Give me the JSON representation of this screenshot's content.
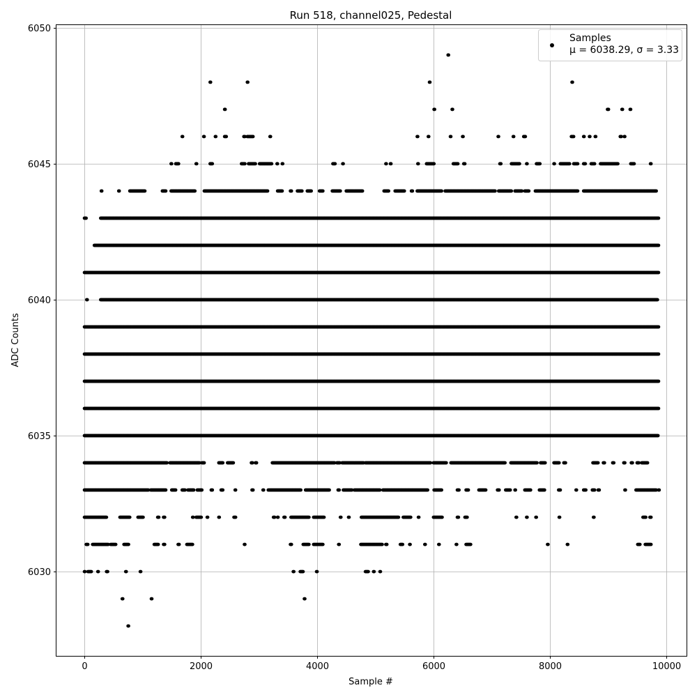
{
  "chart_data": {
    "type": "scatter",
    "title": "Run 518, channel025, Pedestal",
    "xlabel": "Sample #",
    "ylabel": "ADC Counts",
    "xlim": [
      -480,
      10350
    ],
    "ylim": [
      6026.9,
      6050.1
    ],
    "xticks": [
      0,
      2000,
      4000,
      6000,
      8000,
      10000
    ],
    "yticks": [
      6030,
      6035,
      6040,
      6045,
      6050
    ],
    "grid": true,
    "legend": {
      "placement": "top-right",
      "entries": [
        {
          "name": "Samples",
          "stats": "μ = 6038.29, σ = 3.33"
        }
      ]
    },
    "series": [
      {
        "name": "Samples",
        "color": "#000000",
        "marker": "circle",
        "n_samples": 10000,
        "level_spans": [
          {
            "y": 6028,
            "spans": [
              [
                750,
                760
              ]
            ]
          },
          {
            "y": 6029,
            "spans": [
              [
                650,
                660
              ],
              [
                1150,
                1160
              ],
              [
                3780,
                3790
              ]
            ]
          },
          {
            "y": 6030,
            "spans": [
              [
                0,
                10
              ],
              [
                60,
                120
              ],
              [
                230,
                240
              ],
              [
                380,
                400
              ],
              [
                710,
                720
              ],
              [
                960,
                970
              ],
              [
                3590,
                3600
              ],
              [
                3710,
                3760
              ],
              [
                3990,
                4000
              ],
              [
                4830,
                4880
              ],
              [
                4970,
                4980
              ],
              [
                5080,
                5090
              ]
            ]
          },
          {
            "y": 6031,
            "spans": [
              [
                30,
                60
              ],
              [
                140,
                410
              ],
              [
                450,
                540
              ],
              [
                680,
                760
              ],
              [
                1200,
                1270
              ],
              [
                1360,
                1380
              ],
              [
                1610,
                1630
              ],
              [
                1760,
                1860
              ],
              [
                2750,
                2760
              ],
              [
                3540,
                3560
              ],
              [
                3760,
                3860
              ],
              [
                3940,
                4100
              ],
              [
                4370,
                4380
              ],
              [
                4750,
                5120
              ],
              [
                5180,
                5200
              ],
              [
                5430,
                5470
              ],
              [
                5590,
                5600
              ],
              [
                5850,
                5860
              ],
              [
                6090,
                6100
              ],
              [
                6390,
                6400
              ],
              [
                6560,
                6640
              ],
              [
                7960,
                7970
              ],
              [
                8300,
                8310
              ],
              [
                9510,
                9550
              ],
              [
                9640,
                9740
              ]
            ]
          },
          {
            "y": 6032,
            "spans": [
              [
                0,
                380
              ],
              [
                610,
                780
              ],
              [
                920,
                1010
              ],
              [
                1260,
                1280
              ],
              [
                1360,
                1380
              ],
              [
                1860,
                1870
              ],
              [
                1920,
                2010
              ],
              [
                2110,
                2120
              ],
              [
                2310,
                2320
              ],
              [
                2570,
                2600
              ],
              [
                3250,
                3270
              ],
              [
                3320,
                3330
              ],
              [
                3430,
                3450
              ],
              [
                3550,
                3860
              ],
              [
                3940,
                4120
              ],
              [
                4400,
                4410
              ],
              [
                4540,
                4550
              ],
              [
                4760,
                5400
              ],
              [
                5480,
                5610
              ],
              [
                5740,
                5750
              ],
              [
                6000,
                6150
              ],
              [
                6410,
                6430
              ],
              [
                6540,
                6580
              ],
              [
                7420,
                7430
              ],
              [
                7600,
                7610
              ],
              [
                7760,
                7770
              ],
              [
                8160,
                8170
              ],
              [
                8750,
                8760
              ],
              [
                9600,
                9650
              ],
              [
                9720,
                9740
              ]
            ]
          },
          {
            "y": 6033,
            "spans": [
              [
                0,
                1100
              ],
              [
                1140,
                1400
              ],
              [
                1500,
                1570
              ],
              [
                1680,
                1730
              ],
              [
                1780,
                1880
              ],
              [
                1940,
                2020
              ],
              [
                2180,
                2200
              ],
              [
                2350,
                2380
              ],
              [
                2590,
                2600
              ],
              [
                2880,
                2900
              ],
              [
                3070,
                3080
              ],
              [
                3160,
                3720
              ],
              [
                3800,
                4210
              ],
              [
                4360,
                4380
              ],
              [
                4450,
                4600
              ],
              [
                4640,
                5080
              ],
              [
                5130,
                5900
              ],
              [
                6010,
                6140
              ],
              [
                6410,
                6440
              ],
              [
                6560,
                6600
              ],
              [
                6780,
                6900
              ],
              [
                7100,
                7130
              ],
              [
                7240,
                7320
              ],
              [
                7400,
                7410
              ],
              [
                7570,
                7670
              ],
              [
                7820,
                7910
              ],
              [
                8150,
                8180
              ],
              [
                8450,
                8460
              ],
              [
                8580,
                8620
              ],
              [
                8730,
                8770
              ],
              [
                8830,
                8850
              ],
              [
                9290,
                9300
              ],
              [
                9480,
                9830
              ],
              [
                9870,
                9880
              ]
            ]
          },
          {
            "y": 6034,
            "spans": [
              [
                0,
                1420
              ],
              [
                1470,
                1980
              ],
              [
                2020,
                2060
              ],
              [
                2310,
                2380
              ],
              [
                2460,
                2560
              ],
              [
                2870,
                2890
              ],
              [
                2940,
                2960
              ],
              [
                3230,
                4300
              ],
              [
                4340,
                4390
              ],
              [
                4430,
                4800
              ],
              [
                4830,
                5950
              ],
              [
                6000,
                6220
              ],
              [
                6300,
                7230
              ],
              [
                7330,
                7780
              ],
              [
                7840,
                7920
              ],
              [
                8070,
                8160
              ],
              [
                8240,
                8270
              ],
              [
                8740,
                8830
              ],
              [
                8920,
                8940
              ],
              [
                9080,
                9100
              ],
              [
                9270,
                9290
              ],
              [
                9400,
                9420
              ],
              [
                9500,
                9530
              ],
              [
                9580,
                9680
              ]
            ]
          },
          {
            "y": 6035,
            "spans": [
              [
                0,
                9860
              ]
            ]
          },
          {
            "y": 6036,
            "spans": [
              [
                0,
                9870
              ]
            ]
          },
          {
            "y": 6037,
            "spans": [
              [
                0,
                9870
              ]
            ]
          },
          {
            "y": 6038,
            "spans": [
              [
                0,
                9870
              ]
            ]
          },
          {
            "y": 6039,
            "spans": [
              [
                0,
                9870
              ]
            ]
          },
          {
            "y": 6040,
            "spans": [
              [
                40,
                50
              ],
              [
                280,
                9850
              ]
            ]
          },
          {
            "y": 6041,
            "spans": [
              [
                0,
                9870
              ]
            ]
          },
          {
            "y": 6042,
            "spans": [
              [
                170,
                9870
              ]
            ]
          },
          {
            "y": 6043,
            "spans": [
              [
                0,
                30
              ],
              [
                280,
                9870
              ]
            ]
          },
          {
            "y": 6044,
            "spans": [
              [
                290,
                300
              ],
              [
                590,
                600
              ],
              [
                780,
                1040
              ],
              [
                1340,
                1400
              ],
              [
                1490,
                1900
              ],
              [
                2060,
                3150
              ],
              [
                3320,
                3400
              ],
              [
                3540,
                3560
              ],
              [
                3660,
                3740
              ],
              [
                3830,
                3900
              ],
              [
                4040,
                4100
              ],
              [
                4260,
                4400
              ],
              [
                4500,
                4780
              ],
              [
                5150,
                5230
              ],
              [
                5340,
                5500
              ],
              [
                5620,
                5640
              ],
              [
                5720,
                6140
              ],
              [
                6200,
                7060
              ],
              [
                7120,
                7340
              ],
              [
                7400,
                7520
              ],
              [
                7570,
                7640
              ],
              [
                7750,
                8480
              ],
              [
                8580,
                9830
              ]
            ]
          },
          {
            "y": 6045,
            "spans": [
              [
                1490,
                1500
              ],
              [
                1570,
                1620
              ],
              [
                1920,
                1930
              ],
              [
                2160,
                2200
              ],
              [
                2700,
                2760
              ],
              [
                2820,
                2940
              ],
              [
                3010,
                3220
              ],
              [
                3310,
                3320
              ],
              [
                3400,
                3410
              ],
              [
                4270,
                4310
              ],
              [
                4440,
                4450
              ],
              [
                5180,
                5190
              ],
              [
                5260,
                5270
              ],
              [
                5730,
                5740
              ],
              [
                5880,
                6010
              ],
              [
                6340,
                6420
              ],
              [
                6520,
                6540
              ],
              [
                7140,
                7160
              ],
              [
                7340,
                7480
              ],
              [
                7600,
                7610
              ],
              [
                7770,
                7830
              ],
              [
                8070,
                8080
              ],
              [
                8180,
                8340
              ],
              [
                8410,
                8480
              ],
              [
                8580,
                8610
              ],
              [
                8710,
                8770
              ],
              [
                8870,
                9170
              ],
              [
                9390,
                9450
              ],
              [
                9730,
                9740
              ]
            ]
          },
          {
            "y": 6046,
            "spans": [
              [
                1680,
                1690
              ],
              [
                2050,
                2060
              ],
              [
                2250,
                2260
              ],
              [
                2410,
                2440
              ],
              [
                2740,
                2760
              ],
              [
                2800,
                2900
              ],
              [
                3190,
                3200
              ],
              [
                5720,
                5730
              ],
              [
                5910,
                5920
              ],
              [
                6290,
                6300
              ],
              [
                6500,
                6510
              ],
              [
                7110,
                7120
              ],
              [
                7370,
                7380
              ],
              [
                7550,
                7580
              ],
              [
                8370,
                8410
              ],
              [
                8580,
                8590
              ],
              [
                8680,
                8690
              ],
              [
                8780,
                8790
              ],
              [
                9210,
                9230
              ],
              [
                9280,
                9290
              ]
            ]
          },
          {
            "y": 6047,
            "spans": [
              [
                2410,
                2420
              ],
              [
                6010,
                6020
              ],
              [
                6320,
                6330
              ],
              [
                8990,
                9010
              ],
              [
                9240,
                9250
              ],
              [
                9380,
                9390
              ]
            ]
          },
          {
            "y": 6048,
            "spans": [
              [
                2160,
                2170
              ],
              [
                2800,
                2810
              ],
              [
                5930,
                5940
              ],
              [
                8380,
                8390
              ]
            ]
          },
          {
            "y": 6049,
            "spans": [
              [
                6250,
                6260
              ]
            ]
          }
        ]
      }
    ]
  }
}
